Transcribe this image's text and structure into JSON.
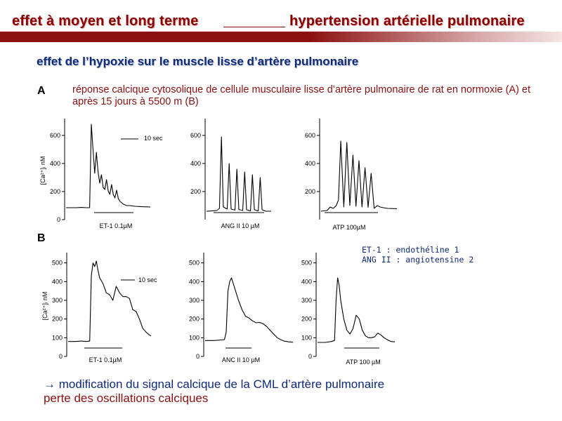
{
  "header": {
    "title_left": "effet à moyen et long terme",
    "title_right": "hypertension artérielle pulmonaire",
    "bar_color": "#8B1010"
  },
  "subtitle": "effet de l’hypoxie sur le muscle lisse d’artère pulmonaire",
  "section_a": {
    "label": "A",
    "description": "réponse calcique cytosolique de cellule musculaire lisse d’artère pulmonaire de rat en normoxie (A) et après 15 jours à 5500 m (B)"
  },
  "section_b": {
    "label": "B"
  },
  "abbreviations": [
    "ET-1 : endothéline 1",
    "ANG II : angiotensine 2"
  ],
  "conclusion": {
    "line1": "→ modification du signal calcique de la CML d’artère pulmonaire",
    "line2": "perte des oscillations calciques"
  },
  "chart_data": [
    {
      "id": "A1",
      "type": "line",
      "row": "A",
      "ylabel": "[Ca²⁺]ᵢ nM",
      "yticks": [
        0,
        200,
        400,
        600
      ],
      "ylim": [
        0,
        700
      ],
      "xlabel": "ET-1 0.1µM",
      "scalebar_label": "10 sec",
      "xlim": [
        0,
        100
      ],
      "x": [
        0,
        6,
        12,
        18,
        24,
        28,
        30,
        32,
        34,
        36,
        38,
        40,
        42,
        44,
        46,
        48,
        50,
        52,
        54,
        56,
        58,
        60,
        62,
        64,
        66,
        68,
        70,
        72,
        76,
        82,
        90,
        100
      ],
      "y": [
        85,
        85,
        85,
        87,
        85,
        85,
        680,
        500,
        330,
        480,
        340,
        260,
        320,
        230,
        215,
        285,
        205,
        180,
        250,
        180,
        155,
        210,
        150,
        130,
        120,
        110,
        105,
        100,
        100,
        95,
        92,
        90
      ]
    },
    {
      "id": "A2",
      "type": "line",
      "row": "A",
      "yticks": [
        200,
        400,
        600
      ],
      "ylim": [
        0,
        700
      ],
      "xlabel": "ANG II 10 µM",
      "xlim": [
        0,
        100
      ],
      "x": [
        0,
        8,
        16,
        20,
        23,
        26,
        32,
        35,
        38,
        44,
        47,
        50,
        56,
        59,
        62,
        68,
        71,
        74,
        80,
        83,
        86,
        92,
        100
      ],
      "y": [
        60,
        62,
        65,
        80,
        590,
        90,
        75,
        400,
        75,
        68,
        360,
        72,
        65,
        340,
        70,
        62,
        320,
        70,
        62,
        300,
        70,
        60,
        60
      ]
    },
    {
      "id": "A3",
      "type": "line",
      "row": "A",
      "yticks": [
        200,
        400,
        600
      ],
      "ylim": [
        0,
        700
      ],
      "xlabel": "ATP 100µM",
      "xlim": [
        0,
        100
      ],
      "x": [
        0,
        8,
        12,
        16,
        20,
        23,
        26,
        30,
        34,
        38,
        42,
        46,
        50,
        54,
        58,
        62,
        66,
        70,
        74,
        78,
        82,
        88,
        100
      ],
      "y": [
        60,
        65,
        90,
        80,
        100,
        140,
        560,
        90,
        550,
        100,
        460,
        95,
        420,
        90,
        370,
        88,
        330,
        80,
        100,
        90,
        85,
        80,
        78
      ]
    },
    {
      "id": "B1",
      "type": "line",
      "row": "B",
      "ylabel": "[Ca²⁺]ᵢ nM",
      "yticks": [
        0,
        100,
        200,
        300,
        400,
        500
      ],
      "ylim": [
        0,
        540
      ],
      "xlabel": "ET-1 0.1µM",
      "scalebar_label": "10 sec",
      "xlim": [
        0,
        100
      ],
      "x": [
        0,
        8,
        16,
        22,
        26,
        28,
        30,
        32,
        34,
        36,
        38,
        42,
        46,
        50,
        54,
        58,
        62,
        66,
        70,
        74,
        78,
        82,
        86,
        90,
        94,
        98,
        100
      ],
      "y": [
        80,
        80,
        82,
        80,
        82,
        430,
        500,
        480,
        510,
        460,
        420,
        390,
        340,
        330,
        300,
        375,
        340,
        320,
        320,
        310,
        250,
        240,
        200,
        150,
        130,
        115,
        110
      ]
    },
    {
      "id": "B2",
      "type": "line",
      "row": "B",
      "yticks": [
        0,
        100,
        200,
        300,
        400,
        500
      ],
      "ylim": [
        0,
        540
      ],
      "xlabel": "ANC II 10 µM",
      "xlim": [
        0,
        100
      ],
      "x": [
        0,
        10,
        18,
        22,
        24,
        26,
        28,
        30,
        34,
        38,
        42,
        46,
        50,
        54,
        58,
        62,
        66,
        70,
        74,
        78,
        82,
        86,
        90,
        95,
        100
      ],
      "y": [
        85,
        85,
        88,
        90,
        130,
        350,
        400,
        420,
        360,
        300,
        250,
        215,
        205,
        190,
        180,
        182,
        175,
        160,
        140,
        120,
        100,
        90,
        82,
        78,
        76
      ]
    },
    {
      "id": "B3",
      "type": "line",
      "row": "B",
      "yticks": [
        0,
        100,
        200,
        300,
        400,
        500
      ],
      "ylim": [
        0,
        540
      ],
      "xlabel": "ATP 100 µM",
      "xlim": [
        0,
        100
      ],
      "x": [
        0,
        10,
        18,
        22,
        24,
        26,
        28,
        30,
        34,
        38,
        42,
        46,
        50,
        54,
        58,
        62,
        66,
        70,
        74,
        78,
        82,
        86,
        90,
        95,
        100
      ],
      "y": [
        75,
        75,
        80,
        85,
        300,
        420,
        380,
        300,
        200,
        140,
        120,
        150,
        220,
        200,
        140,
        110,
        100,
        100,
        105,
        125,
        115,
        100,
        90,
        80,
        78
      ]
    }
  ]
}
